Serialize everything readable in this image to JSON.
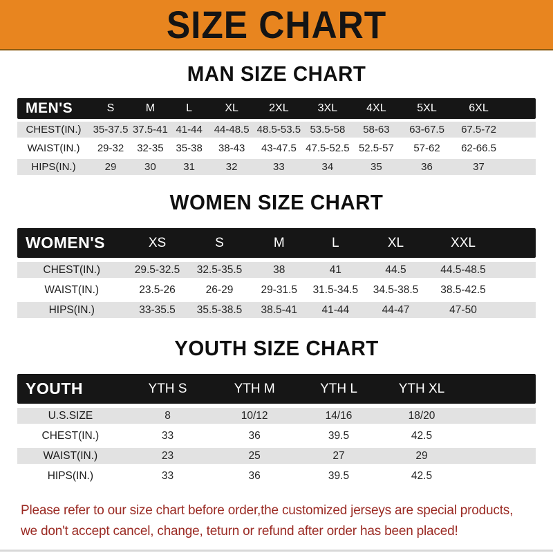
{
  "banner": {
    "title": "SIZE CHART"
  },
  "colors": {
    "banner_bg": "#E8851F",
    "header_bar_bg": "#161616",
    "header_bar_text": "#FFFFFF",
    "stripe_gray": "#E2E2E2",
    "note_red": "#9B2B24"
  },
  "sections": [
    {
      "title": "MAN SIZE CHART",
      "label": "MEN'S",
      "columns": [
        "S",
        "M",
        "L",
        "XL",
        "2XL",
        "3XL",
        "4XL",
        "5XL",
        "6XL"
      ],
      "rows": [
        {
          "label": "CHEST(IN.)",
          "values": [
            "35-37.5",
            "37.5-41",
            "41-44",
            "44-48.5",
            "48.5-53.5",
            "53.5-58",
            "58-63",
            "63-67.5",
            "67.5-72"
          ]
        },
        {
          "label": "WAIST(IN.)",
          "values": [
            "29-32",
            "32-35",
            "35-38",
            "38-43",
            "43-47.5",
            "47.5-52.5",
            "52.5-57",
            "57-62",
            "62-66.5"
          ]
        },
        {
          "label": "HIPS(IN.)",
          "values": [
            "29",
            "30",
            "31",
            "32",
            "33",
            "34",
            "35",
            "36",
            "37"
          ]
        }
      ]
    },
    {
      "title": "WOMEN SIZE CHART",
      "label": "WOMEN'S",
      "columns": [
        "XS",
        "S",
        "M",
        "L",
        "XL",
        "XXL"
      ],
      "rows": [
        {
          "label": "CHEST(IN.)",
          "values": [
            "29.5-32.5",
            "32.5-35.5",
            "38",
            "41",
            "44.5",
            "44.5-48.5"
          ]
        },
        {
          "label": "WAIST(IN.)",
          "values": [
            "23.5-26",
            "26-29",
            "29-31.5",
            "31.5-34.5",
            "34.5-38.5",
            "38.5-42.5"
          ]
        },
        {
          "label": "HIPS(IN.)",
          "values": [
            "33-35.5",
            "35.5-38.5",
            "38.5-41",
            "41-44",
            "44-47",
            "47-50"
          ]
        }
      ]
    },
    {
      "title": "YOUTH SIZE CHART",
      "label": "YOUTH",
      "columns": [
        "YTH S",
        "YTH M",
        "YTH L",
        "YTH XL"
      ],
      "rows": [
        {
          "label": "U.S.SIZE",
          "values": [
            "8",
            "10/12",
            "14/16",
            "18/20"
          ]
        },
        {
          "label": "CHEST(IN.)",
          "values": [
            "33",
            "36",
            "39.5",
            "42.5"
          ]
        },
        {
          "label": "WAIST(IN.)",
          "values": [
            "23",
            "25",
            "27",
            "29"
          ]
        },
        {
          "label": "HIPS(IN.)",
          "values": [
            "33",
            "36",
            "39.5",
            "42.5"
          ]
        }
      ]
    }
  ],
  "footer": {
    "line1": "Please refer to our size chart before order,the customized jerseys are special products,",
    "line2": "we don't accept cancel, change, teturn or refund after order has been placed!"
  }
}
